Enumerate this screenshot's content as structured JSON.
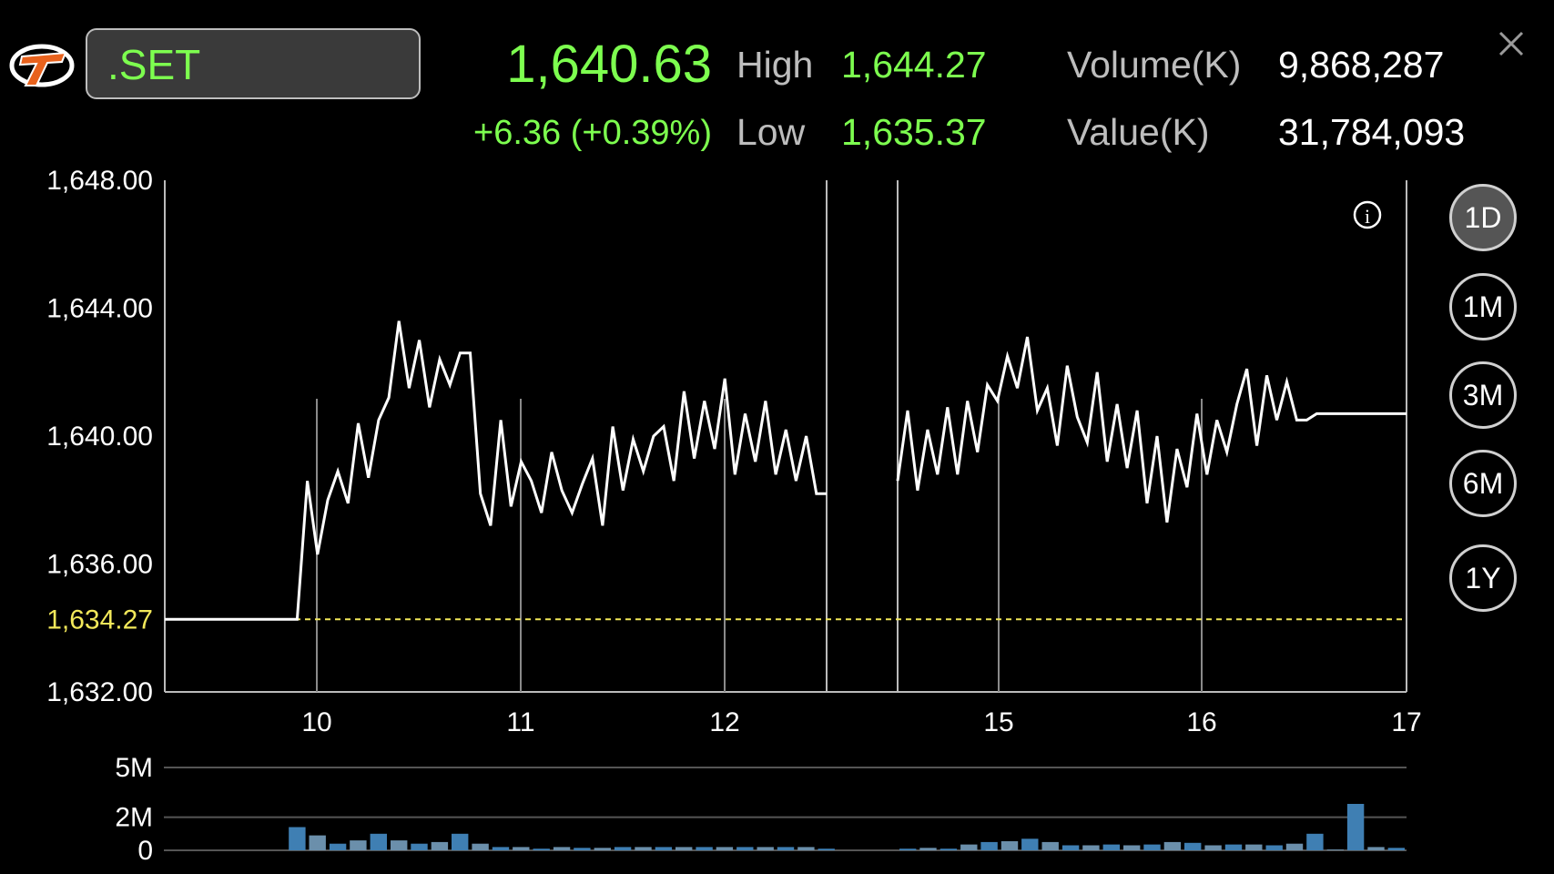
{
  "header": {
    "symbol": ".SET",
    "last": "1,640.63",
    "change": "+6.36 (+0.39%)",
    "high_label": "High",
    "high": "1,644.27",
    "low_label": "Low",
    "low": "1,635.37",
    "volume_label": "Volume(K)",
    "volume": "9,868,287",
    "value_label": "Value(K)",
    "value": "31,784,093"
  },
  "icons": {
    "logo": "brand-logo",
    "close": "close-icon",
    "info": "info-icon"
  },
  "periods": [
    {
      "label": "1D",
      "active": true
    },
    {
      "label": "1M",
      "active": false
    },
    {
      "label": "3M",
      "active": false
    },
    {
      "label": "6M",
      "active": false
    },
    {
      "label": "1Y",
      "active": false
    }
  ],
  "colors": {
    "up": "#7dff4f",
    "line": "#ffffff",
    "prev_close": "#f2e85a",
    "volume": "#3f7fb3"
  },
  "chart_data": {
    "type": "line",
    "y_ticks": [
      "1,648.00",
      "1,644.00",
      "1,640.00",
      "1,636.00",
      "1,632.00"
    ],
    "ylim": [
      1632,
      1648
    ],
    "prev_close_label": "1,634.27",
    "prev_close": 1634.27,
    "x_ticks": [
      "10",
      "11",
      "12",
      "15",
      "16",
      "17"
    ],
    "price": [
      1634.27,
      1634.27,
      1634.27,
      1634.27,
      1634.27,
      1634.27,
      1634.27,
      1634.27,
      1634.27,
      1634.27,
      1634.27,
      1634.27,
      1634.27,
      1634.27,
      1638.6,
      1636.3,
      1638.0,
      1638.9,
      1637.9,
      1640.4,
      1638.7,
      1640.5,
      1641.2,
      1643.6,
      1641.5,
      1643.0,
      1640.9,
      1642.4,
      1641.6,
      1642.6,
      1642.6,
      1638.2,
      1637.2,
      1640.5,
      1637.8,
      1639.2,
      1638.6,
      1637.6,
      1639.5,
      1638.3,
      1637.6,
      1638.5,
      1639.3,
      1637.2,
      1640.3,
      1638.3,
      1639.9,
      1638.9,
      1640.0,
      1640.3,
      1638.6,
      1641.4,
      1639.3,
      1641.1,
      1639.6,
      1641.8,
      1638.8,
      1640.7,
      1639.2,
      1641.1,
      1638.8,
      1640.2,
      1638.6,
      1640.0,
      1638.2,
      1638.2,
      1638.6,
      1640.8,
      1638.3,
      1640.2,
      1638.8,
      1640.9,
      1638.8,
      1641.1,
      1639.5,
      1641.6,
      1641.1,
      1642.5,
      1641.5,
      1643.1,
      1640.8,
      1641.5,
      1639.7,
      1642.2,
      1640.6,
      1639.8,
      1642.0,
      1639.2,
      1641.0,
      1639.0,
      1640.8,
      1637.9,
      1640.0,
      1637.3,
      1639.6,
      1638.4,
      1640.7,
      1638.8,
      1640.5,
      1639.5,
      1641.0,
      1642.1,
      1639.7,
      1641.9,
      1640.5,
      1641.7,
      1640.5,
      1640.5,
      1640.7,
      1640.7,
      1640.7,
      1640.7,
      1640.7,
      1640.7,
      1640.7,
      1640.7,
      1640.7,
      1640.7
    ],
    "gap_after_index": 65,
    "volume_ticks": [
      "5M",
      "2M",
      "0"
    ],
    "volume_ylim": [
      0,
      5
    ],
    "volume": [
      0,
      0,
      0,
      0,
      0,
      0,
      1.4,
      0.9,
      0.4,
      0.6,
      1.0,
      0.6,
      0.4,
      0.5,
      1.0,
      0.4,
      0.2,
      0.2,
      0.1,
      0.2,
      0.15,
      0.15,
      0.2,
      0.2,
      0.2,
      0.2,
      0.2,
      0.2,
      0.2,
      0.2,
      0.2,
      0.2,
      0.1,
      0,
      0,
      0,
      0.1,
      0.15,
      0.1,
      0.35,
      0.5,
      0.55,
      0.7,
      0.5,
      0.3,
      0.3,
      0.35,
      0.3,
      0.35,
      0.5,
      0.45,
      0.3,
      0.35,
      0.35,
      0.3,
      0.4,
      1.0,
      0.05,
      2.8,
      0.2,
      0.15
    ]
  }
}
